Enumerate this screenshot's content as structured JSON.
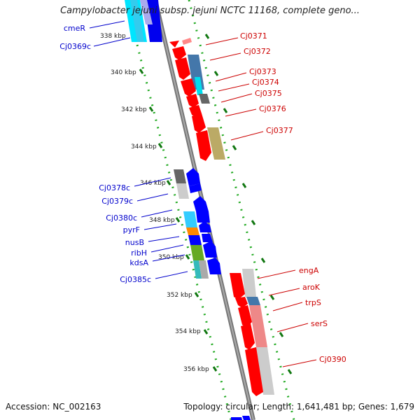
{
  "title": "Campylobacter jejuni subsp. jejuni NCTC 11168, complete geno...",
  "accession": "Accession: NC_002163",
  "summary": "Topology: circular; Length: 1,641,481 bp; Genes: 1,679",
  "scale_labels": [
    "338 kbp",
    "340 kbp",
    "342 kbp",
    "344 kbp",
    "346 kbp",
    "348 kbp",
    "350 kbp",
    "352 kbp",
    "354 kbp",
    "356 kbp"
  ],
  "left_labels": [
    "cmeR",
    "Cj0369c",
    "Cj0378c",
    "Cj0379c",
    "Cj0380c",
    "pyrF",
    "nusB",
    "ribH",
    "kdsA",
    "Cj0385c"
  ],
  "right_labels": [
    "Cj0371",
    "Cj0372",
    "Cj0373",
    "Cj0374",
    "Cj0375",
    "Cj0376",
    "Cj0377",
    "engA",
    "aroK",
    "trpS",
    "serS",
    "Cj0390"
  ],
  "colors": {
    "reverse_label": "#0000cc",
    "forward_label": "#cc0000",
    "backbone": "#888888",
    "scale_dots": "#22aa22",
    "forward_arrow": "#ff0000",
    "reverse_arrow": "#0000ff"
  }
}
